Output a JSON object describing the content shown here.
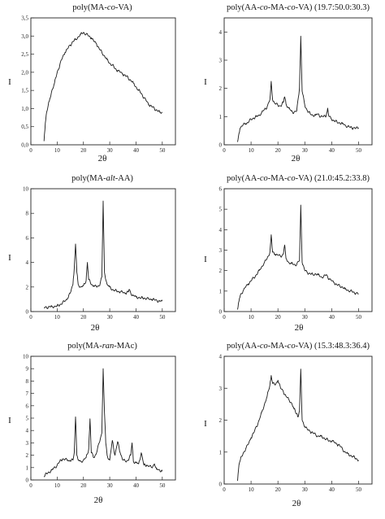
{
  "chart_data": [
    {
      "type": "line",
      "title": "poly(MA-co-VA)",
      "title_parts": [
        {
          "t": "poly(MA-"
        },
        {
          "t": "co",
          "i": true
        },
        {
          "t": "-VA)"
        }
      ],
      "xlabel": "2θ",
      "ylabel": "I",
      "xlim": [
        0,
        55
      ],
      "ylim": [
        0,
        3.5
      ],
      "xticks": [
        0,
        10,
        20,
        30,
        40,
        50
      ],
      "yticks": [
        0,
        0.5,
        1,
        1.5,
        2,
        2.5,
        3,
        3.5
      ],
      "ytick_labels": [
        "0,0",
        "0,5",
        "1,0",
        "1,5",
        "2,0",
        "2,5",
        "3,0",
        "3,5"
      ],
      "grid": false,
      "series": [
        {
          "x": [
            5,
            5.5,
            6,
            7,
            8,
            9,
            10,
            11,
            12,
            13,
            14,
            15,
            16,
            17,
            18,
            19,
            20,
            21,
            22,
            23,
            24,
            25,
            26,
            27,
            28,
            29,
            30,
            31,
            32,
            33,
            34,
            35,
            36,
            37,
            38,
            39,
            40,
            41,
            42,
            43,
            44,
            45,
            46,
            47,
            48,
            49,
            50
          ],
          "y": [
            0.1,
            0.6,
            0.9,
            1.2,
            1.5,
            1.7,
            2.0,
            2.2,
            2.4,
            2.55,
            2.65,
            2.75,
            2.85,
            2.9,
            2.98,
            3.05,
            3.1,
            3.05,
            3.0,
            2.95,
            2.85,
            2.78,
            2.65,
            2.55,
            2.45,
            2.35,
            2.25,
            2.2,
            2.1,
            2.05,
            2.0,
            1.95,
            1.9,
            1.85,
            1.78,
            1.7,
            1.6,
            1.5,
            1.42,
            1.3,
            1.2,
            1.1,
            1.05,
            1.0,
            0.95,
            0.9,
            0.9
          ]
        }
      ]
    },
    {
      "type": "line",
      "title": "poly(AA-co-MA-co-VA) (19.7:50.0:30.3)",
      "title_parts": [
        {
          "t": "poly(AA-"
        },
        {
          "t": "co",
          "i": true
        },
        {
          "t": "-MA-"
        },
        {
          "t": "co",
          "i": true
        },
        {
          "t": "-VA)  (19.7:50.0:30.3)"
        }
      ],
      "xlabel": "2θ",
      "ylabel": "I",
      "xlim": [
        0,
        55
      ],
      "ylim": [
        0,
        4.5
      ],
      "xticks": [
        0,
        10,
        20,
        30,
        40,
        50
      ],
      "yticks": [
        0,
        1,
        2,
        3,
        4
      ],
      "ytick_labels": [
        "0",
        "1",
        "2",
        "3",
        "4"
      ],
      "grid": false,
      "series": [
        {
          "x": [
            5,
            5.5,
            6,
            7,
            8,
            9,
            10,
            11,
            12,
            13,
            14,
            15,
            16,
            17,
            17.5,
            18,
            19,
            20,
            21,
            22,
            22.5,
            23,
            24,
            25,
            26,
            27,
            28,
            28.5,
            29,
            30,
            31,
            32,
            33,
            34,
            35,
            36,
            37,
            38,
            38.5,
            39,
            40,
            41,
            42,
            43,
            44,
            45,
            46,
            47,
            48,
            49,
            50
          ],
          "y": [
            0.1,
            0.4,
            0.6,
            0.7,
            0.75,
            0.8,
            0.9,
            0.95,
            1.0,
            1.05,
            1.15,
            1.25,
            1.35,
            1.6,
            2.25,
            1.6,
            1.45,
            1.4,
            1.38,
            1.5,
            1.7,
            1.45,
            1.3,
            1.2,
            1.15,
            1.2,
            2.0,
            3.85,
            1.9,
            1.4,
            1.2,
            1.1,
            1.05,
            1.05,
            1.1,
            1.0,
            1.0,
            1.05,
            1.3,
            1.0,
            0.9,
            0.85,
            0.8,
            0.78,
            0.75,
            0.7,
            0.65,
            0.62,
            0.6,
            0.58,
            0.6
          ]
        }
      ]
    },
    {
      "type": "line",
      "title": "poly(MA-alt-AA)",
      "title_parts": [
        {
          "t": "poly(MA-"
        },
        {
          "t": "alt",
          "i": true
        },
        {
          "t": "-AA)"
        }
      ],
      "xlabel": "2θ",
      "ylabel": "I",
      "xlim": [
        0,
        55
      ],
      "ylim": [
        0,
        10
      ],
      "xticks": [
        0,
        10,
        20,
        30,
        40,
        50
      ],
      "yticks": [
        0,
        2,
        4,
        6,
        8,
        10
      ],
      "ytick_labels": [
        "0",
        "2",
        "4",
        "6",
        "8",
        "10"
      ],
      "grid": false,
      "series": [
        {
          "x": [
            5,
            6,
            8,
            10,
            11,
            12,
            13,
            14,
            15,
            16,
            16.5,
            17,
            17.5,
            18,
            19,
            20,
            21,
            21.5,
            22,
            23,
            24,
            25,
            26,
            27,
            27.5,
            28,
            29,
            30,
            31,
            32,
            33,
            34,
            35,
            36,
            37,
            37.5,
            38,
            39,
            40,
            41,
            42,
            43,
            44,
            45,
            46,
            47,
            48,
            49,
            50
          ],
          "y": [
            0.3,
            0.35,
            0.4,
            0.45,
            0.55,
            0.7,
            0.85,
            1.1,
            1.5,
            2.2,
            3.5,
            5.5,
            3.2,
            2.2,
            2.0,
            2.1,
            2.5,
            4.0,
            2.6,
            2.2,
            2.1,
            2.0,
            2.1,
            2.8,
            9.0,
            3.2,
            2.2,
            2.0,
            1.8,
            1.7,
            1.65,
            1.6,
            1.55,
            1.5,
            1.6,
            1.8,
            1.5,
            1.3,
            1.2,
            1.15,
            1.1,
            1.1,
            1.05,
            1.0,
            1.0,
            0.95,
            0.9,
            0.85,
            0.85
          ]
        }
      ]
    },
    {
      "type": "line",
      "title": "poly(AA-co-MA-co-VA) (21.0:45.2:33.8)",
      "title_parts": [
        {
          "t": "poly(AA-"
        },
        {
          "t": "co",
          "i": true
        },
        {
          "t": "-MA-"
        },
        {
          "t": "co",
          "i": true
        },
        {
          "t": "-VA)  (21.0:45.2:33.8)"
        }
      ],
      "xlabel": "2θ",
      "ylabel": "I",
      "xlim": [
        0,
        55
      ],
      "ylim": [
        0,
        6
      ],
      "xticks": [
        0,
        10,
        20,
        30,
        40,
        50
      ],
      "yticks": [
        0,
        1,
        2,
        3,
        4,
        5,
        6
      ],
      "ytick_labels": [
        "0",
        "1",
        "2",
        "3",
        "4",
        "5",
        "6"
      ],
      "grid": false,
      "series": [
        {
          "x": [
            5,
            5.5,
            6,
            7,
            8,
            9,
            10,
            11,
            12,
            13,
            14,
            15,
            16,
            17,
            17.5,
            18,
            19,
            20,
            21,
            22,
            22.5,
            23,
            24,
            25,
            26,
            27,
            28,
            28.5,
            29,
            30,
            31,
            32,
            33,
            34,
            35,
            36,
            37,
            38,
            39,
            40,
            41,
            42,
            43,
            44,
            45,
            46,
            47,
            48,
            49,
            50
          ],
          "y": [
            0.1,
            0.5,
            0.8,
            1.0,
            1.2,
            1.35,
            1.5,
            1.65,
            1.8,
            2.0,
            2.2,
            2.4,
            2.6,
            2.9,
            3.75,
            2.9,
            2.8,
            2.75,
            2.7,
            2.8,
            3.25,
            2.6,
            2.4,
            2.35,
            2.3,
            2.3,
            2.5,
            5.2,
            2.4,
            2.0,
            1.9,
            1.85,
            1.8,
            1.85,
            1.8,
            1.7,
            1.7,
            1.8,
            1.6,
            1.5,
            1.4,
            1.3,
            1.25,
            1.2,
            1.1,
            1.05,
            1.0,
            0.95,
            0.9,
            0.85
          ]
        }
      ]
    },
    {
      "type": "line",
      "title": "poly(MA-ran-MAc)",
      "title_parts": [
        {
          "t": "poly(MA-"
        },
        {
          "t": "ran",
          "i": true
        },
        {
          "t": "-MAc)"
        }
      ],
      "xlabel": "2θ",
      "ylabel": "I",
      "xlim": [
        0,
        55
      ],
      "ylim": [
        0,
        10
      ],
      "xticks": [
        0,
        10,
        20,
        30,
        40,
        50
      ],
      "yticks": [
        0,
        1,
        2,
        3,
        4,
        5,
        6,
        7,
        8,
        9,
        10
      ],
      "ytick_labels": [
        "0",
        "1",
        "2",
        "3",
        "4",
        "5",
        "6",
        "7",
        "8",
        "9",
        "10"
      ],
      "grid": false,
      "series": [
        {
          "x": [
            5,
            6,
            8,
            10,
            11,
            12,
            13,
            14,
            15,
            16,
            16.5,
            17,
            17.5,
            18,
            19,
            20,
            21,
            22,
            22.5,
            23,
            24,
            25,
            26,
            27,
            27.5,
            28,
            28.5,
            29,
            30,
            31,
            32,
            33,
            34,
            35,
            36,
            37,
            38,
            38.5,
            39,
            40,
            41,
            42,
            43,
            44,
            45,
            46,
            47,
            47.5,
            48,
            49,
            50
          ],
          "y": [
            0.3,
            0.5,
            0.8,
            1.2,
            1.5,
            1.7,
            1.65,
            1.6,
            1.55,
            1.6,
            2.2,
            5.1,
            2.0,
            1.6,
            1.5,
            1.6,
            1.8,
            2.5,
            4.95,
            2.2,
            1.8,
            2.2,
            3.0,
            3.8,
            9.0,
            5.5,
            3.0,
            2.0,
            1.6,
            3.2,
            2.0,
            3.1,
            2.2,
            1.6,
            1.5,
            1.6,
            2.0,
            3.0,
            1.5,
            1.4,
            1.3,
            2.2,
            1.2,
            1.2,
            1.1,
            1.0,
            1.3,
            1.0,
            0.9,
            0.8,
            0.7
          ]
        }
      ]
    },
    {
      "type": "line",
      "title": "poly(AA-co-MA-co-VA) (15.3:48.3:36.4)",
      "title_parts": [
        {
          "t": "poly(AA-"
        },
        {
          "t": "co",
          "i": true
        },
        {
          "t": "-MA-"
        },
        {
          "t": "co",
          "i": true
        },
        {
          "t": "-VA)  (15.3:48.3:36.4)"
        }
      ],
      "xlabel": "2θ",
      "ylabel": "I",
      "xlim": [
        0,
        55
      ],
      "ylim": [
        0,
        4
      ],
      "xticks": [
        0,
        10,
        20,
        30,
        40,
        50
      ],
      "yticks": [
        0,
        1,
        2,
        3,
        4
      ],
      "ytick_labels": [
        "0",
        "1",
        "2",
        "3",
        "4"
      ],
      "grid": false,
      "series": [
        {
          "x": [
            5,
            5.5,
            6,
            7,
            8,
            9,
            10,
            11,
            12,
            13,
            14,
            15,
            16,
            17,
            17.5,
            18,
            19,
            20,
            21,
            22,
            23,
            24,
            25,
            26,
            27,
            27.5,
            28,
            28.5,
            29,
            30,
            31,
            32,
            33,
            34,
            35,
            36,
            37,
            38,
            39,
            40,
            41,
            42,
            43,
            44,
            45,
            46,
            47,
            48,
            49,
            50
          ],
          "y": [
            0.1,
            0.6,
            0.75,
            0.95,
            1.1,
            1.25,
            1.45,
            1.6,
            1.8,
            2.0,
            2.25,
            2.5,
            2.75,
            3.1,
            3.4,
            3.15,
            3.1,
            3.25,
            3.0,
            2.9,
            2.75,
            2.65,
            2.55,
            2.35,
            2.2,
            2.1,
            2.3,
            3.6,
            2.0,
            1.8,
            1.7,
            1.65,
            1.6,
            1.55,
            1.5,
            1.5,
            1.45,
            1.4,
            1.35,
            1.35,
            1.3,
            1.25,
            1.2,
            1.1,
            1.0,
            0.95,
            0.9,
            0.85,
            0.8,
            0.75
          ]
        }
      ]
    }
  ]
}
